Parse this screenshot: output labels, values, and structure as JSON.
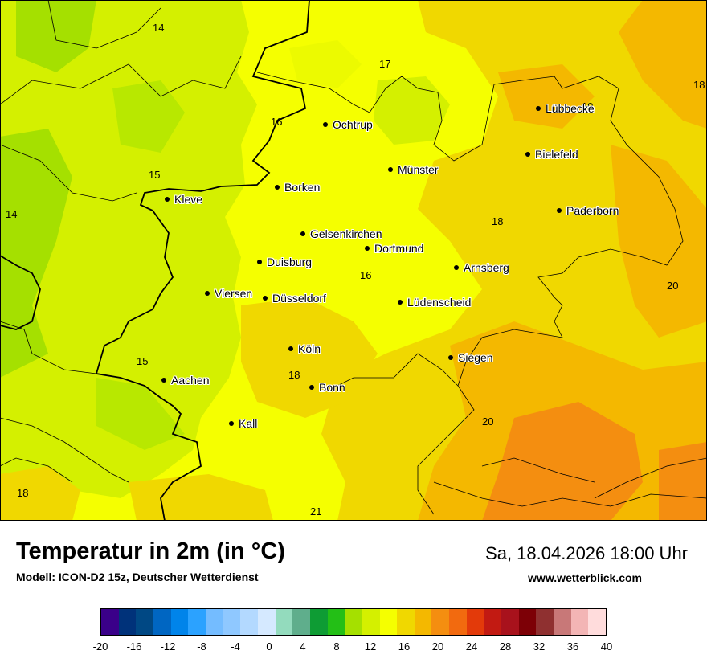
{
  "title": "Temperatur in 2m (in °C)",
  "subtitle": "Modell: ICON-D2 15z, Deutscher Wetterdienst",
  "datetime": "Sa, 18.04.2026 18:00 Uhr",
  "website": "www.wetterblick.com",
  "cities": [
    {
      "name": "Ochtrup"
    },
    {
      "name": "Lübbecke"
    },
    {
      "name": "Bielefeld"
    },
    {
      "name": "Münster"
    },
    {
      "name": "Borken"
    },
    {
      "name": "Kleve"
    },
    {
      "name": "Paderborn"
    },
    {
      "name": "Gelsenkirchen"
    },
    {
      "name": "Dortmund"
    },
    {
      "name": "Duisburg"
    },
    {
      "name": "Arnsberg"
    },
    {
      "name": "Viersen"
    },
    {
      "name": "Düsseldorf"
    },
    {
      "name": "Lüdenscheid"
    },
    {
      "name": "Köln"
    },
    {
      "name": "Siegen"
    },
    {
      "name": "Aachen"
    },
    {
      "name": "Bonn"
    },
    {
      "name": "Kall"
    }
  ],
  "isotherm_labels": [
    "14",
    "17",
    "18",
    "16",
    "19",
    "15",
    "14",
    "18",
    "16",
    "20",
    "15",
    "18",
    "20",
    "18",
    "21"
  ],
  "legend": {
    "ticks": [
      "-20",
      "-16",
      "-12",
      "-8",
      "-4",
      "0",
      "4",
      "8",
      "12",
      "16",
      "20",
      "24",
      "28",
      "32",
      "36",
      "40"
    ],
    "colors": [
      "#3a0089",
      "#00327a",
      "#004884",
      "#0066c2",
      "#0084ea",
      "#2ba2ff",
      "#74bcff",
      "#8fc8ff",
      "#b3d9ff",
      "#d5e9ff",
      "#93dbbd",
      "#5fae8c",
      "#0e9c34",
      "#23bf16",
      "#a5e000",
      "#d4f000",
      "#f5ff00",
      "#f0d800",
      "#f4b800",
      "#f48e10",
      "#f26a0f",
      "#e33a0a",
      "#c21a12",
      "#a8121c",
      "#7d0006",
      "#8f3030",
      "#c87878",
      "#f3b5b5",
      "#ffdcdc"
    ]
  }
}
